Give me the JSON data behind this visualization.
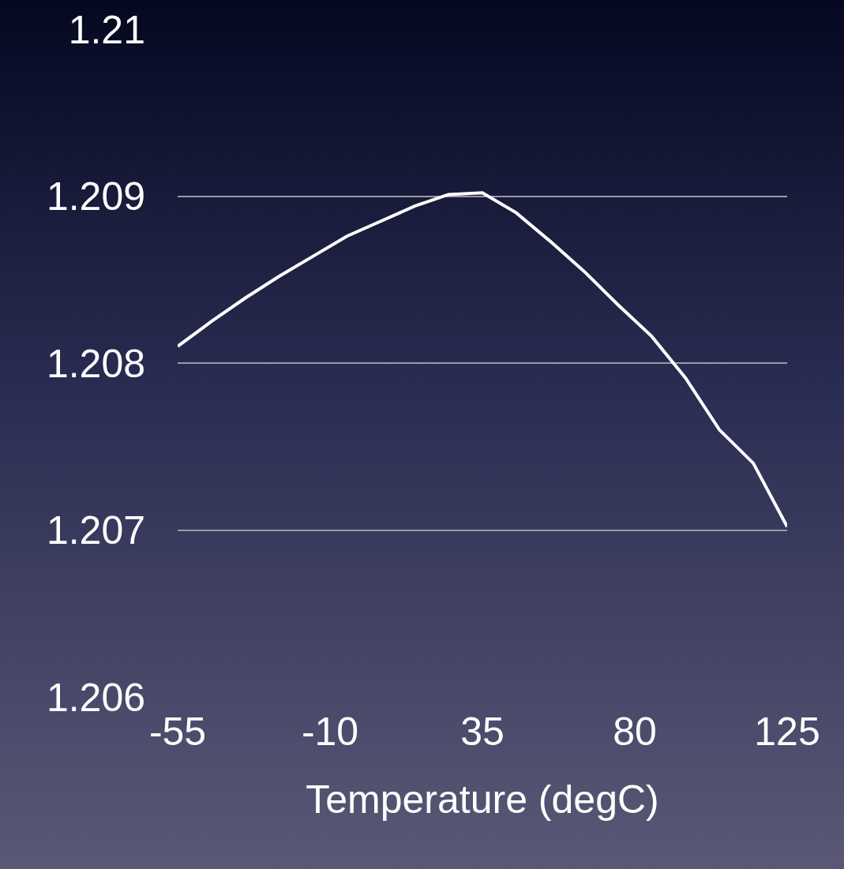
{
  "chart_data": {
    "type": "line",
    "xlabel": "Temperature (degC)",
    "x": [
      -55,
      -45,
      -35,
      -25,
      -15,
      -5,
      5,
      15,
      25,
      35,
      45,
      55,
      65,
      75,
      85,
      95,
      105,
      115,
      125
    ],
    "series": [
      {
        "color": "#ffffff",
        "values": [
          1.2081,
          1.20825,
          1.20839,
          1.20852,
          1.20864,
          1.20876,
          1.20885,
          1.20894,
          1.20901,
          1.20902,
          1.2089,
          1.20873,
          1.20855,
          1.20835,
          1.20816,
          1.20791,
          1.2076,
          1.2074,
          1.20702
        ]
      }
    ],
    "xlim": [
      -55,
      125
    ],
    "xticks": [
      -55,
      -10,
      35,
      80,
      125
    ],
    "ylim": [
      1.206,
      1.21
    ],
    "yticks": [
      1.206,
      1.207,
      1.208,
      1.209,
      1.21
    ],
    "grid": "y",
    "legend": false,
    "marker": "none",
    "line_style": "solid"
  }
}
